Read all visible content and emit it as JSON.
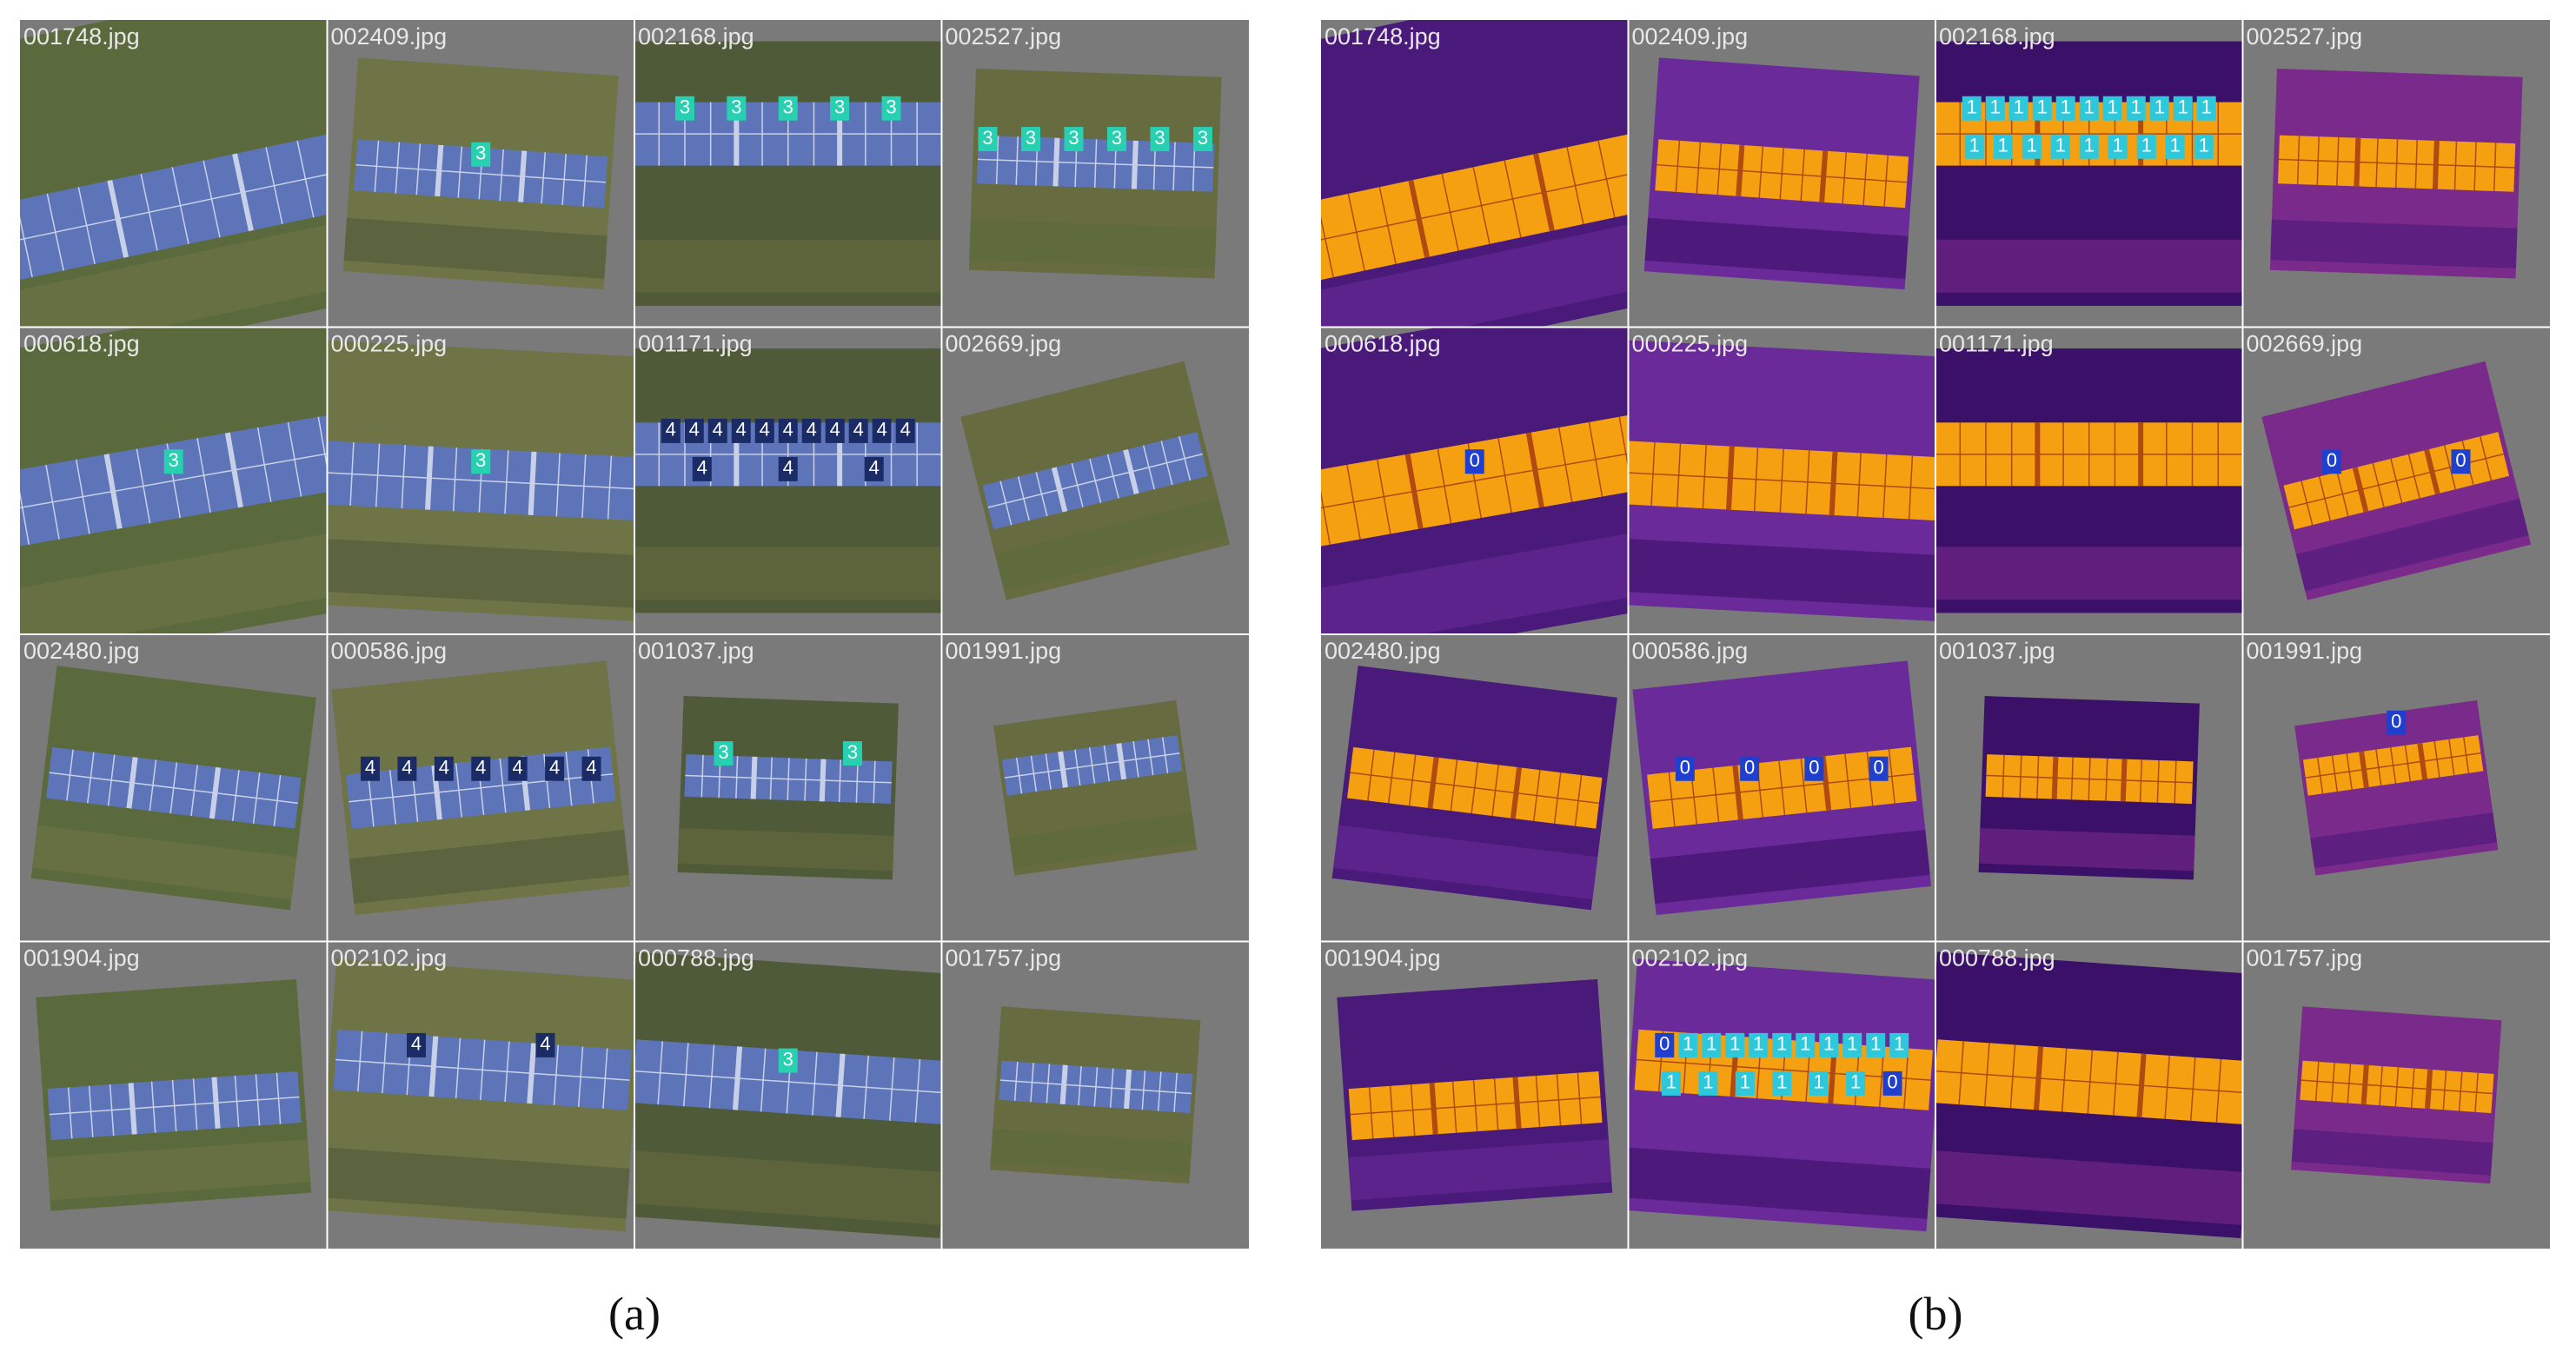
{
  "panels": [
    {
      "caption": "(a)",
      "tiles": [
        {
          "file": "001748.jpg",
          "labels": []
        },
        {
          "file": "002409.jpg",
          "labels": [
            "3"
          ]
        },
        {
          "file": "002168.jpg",
          "labels": [
            "3",
            "3",
            "3",
            "3",
            "3"
          ]
        },
        {
          "file": "002527.jpg",
          "labels": [
            "3",
            "3",
            "3",
            "3",
            "3",
            "3"
          ]
        },
        {
          "file": "000618.jpg",
          "labels": [
            "3"
          ]
        },
        {
          "file": "000225.jpg",
          "labels": [
            "3"
          ]
        },
        {
          "file": "001171.jpg",
          "labels": [
            "4",
            "4",
            "4",
            "4",
            "4",
            "4",
            "4",
            "4",
            "4",
            "4",
            "4",
            "4",
            "4",
            "4"
          ]
        },
        {
          "file": "002669.jpg",
          "labels": []
        },
        {
          "file": "002480.jpg",
          "labels": []
        },
        {
          "file": "000586.jpg",
          "labels": [
            "4",
            "4",
            "4",
            "4",
            "4",
            "4",
            "4"
          ]
        },
        {
          "file": "001037.jpg",
          "labels": [
            "3",
            "3"
          ]
        },
        {
          "file": "001991.jpg",
          "labels": []
        },
        {
          "file": "001904.jpg",
          "labels": []
        },
        {
          "file": "002102.jpg",
          "labels": [
            "4",
            "4"
          ]
        },
        {
          "file": "000788.jpg",
          "labels": [
            "3"
          ]
        },
        {
          "file": "001757.jpg",
          "labels": []
        }
      ]
    },
    {
      "caption": "(b)",
      "tiles": [
        {
          "file": "001748.jpg",
          "labels": []
        },
        {
          "file": "002409.jpg",
          "labels": []
        },
        {
          "file": "002168.jpg",
          "labels": [
            "1",
            "1",
            "1",
            "1",
            "1",
            "1",
            "1",
            "1",
            "1",
            "1",
            "1",
            "1",
            "1",
            "1",
            "1",
            "1",
            "1",
            "1",
            "1",
            "1"
          ]
        },
        {
          "file": "002527.jpg",
          "labels": []
        },
        {
          "file": "000618.jpg",
          "labels": [
            "0"
          ]
        },
        {
          "file": "000225.jpg",
          "labels": []
        },
        {
          "file": "001171.jpg",
          "labels": []
        },
        {
          "file": "002669.jpg",
          "labels": [
            "0",
            "0"
          ]
        },
        {
          "file": "002480.jpg",
          "labels": []
        },
        {
          "file": "000586.jpg",
          "labels": [
            "0",
            "0",
            "0",
            "0"
          ]
        },
        {
          "file": "001037.jpg",
          "labels": []
        },
        {
          "file": "001991.jpg",
          "labels": [
            "0"
          ]
        },
        {
          "file": "001904.jpg",
          "labels": []
        },
        {
          "file": "002102.jpg",
          "labels": [
            "0",
            "1",
            "1",
            "1",
            "1",
            "1",
            "1",
            "1",
            "1",
            "1",
            "1",
            "1",
            "1",
            "1",
            "1",
            "1",
            "1",
            "0"
          ]
        },
        {
          "file": "000788.jpg",
          "labels": []
        },
        {
          "file": "001757.jpg",
          "labels": []
        }
      ]
    }
  ]
}
